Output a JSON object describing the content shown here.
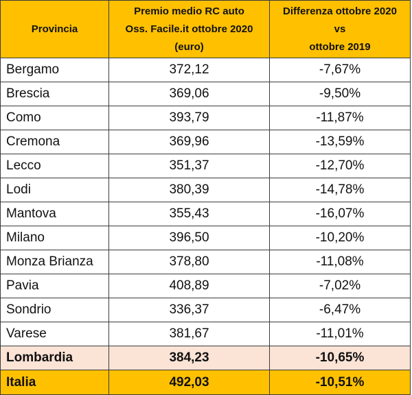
{
  "header": {
    "provincia": "Provincia",
    "premio_line1": "Premio medio RC auto",
    "premio_line2": "Oss. Facile.it ottobre 2020",
    "premio_line3": "(euro)",
    "diff_line1": "Differenza ottobre 2020",
    "diff_line2": "vs",
    "diff_line3": "ottobre 2019"
  },
  "rows": [
    {
      "provincia": "Bergamo",
      "premio": "372,12",
      "differenza": "-7,67%"
    },
    {
      "provincia": "Brescia",
      "premio": "369,06",
      "differenza": "-9,50%"
    },
    {
      "provincia": "Como",
      "premio": "393,79",
      "differenza": "-11,87%"
    },
    {
      "provincia": "Cremona",
      "premio": "369,96",
      "differenza": "-13,59%"
    },
    {
      "provincia": "Lecco",
      "premio": "351,37",
      "differenza": "-12,70%"
    },
    {
      "provincia": "Lodi",
      "premio": "380,39",
      "differenza": "-14,78%"
    },
    {
      "provincia": "Mantova",
      "premio": "355,43",
      "differenza": "-16,07%"
    },
    {
      "provincia": "Milano",
      "premio": "396,50",
      "differenza": "-10,20%"
    },
    {
      "provincia": "Monza Brianza",
      "premio": "378,80",
      "differenza": "-11,08%"
    },
    {
      "provincia": "Pavia",
      "premio": "408,89",
      "differenza": "-7,02%"
    },
    {
      "provincia": "Sondrio",
      "premio": "336,37",
      "differenza": "-6,47%"
    },
    {
      "provincia": "Varese",
      "premio": "381,67",
      "differenza": "-11,01%"
    }
  ],
  "lombardia": {
    "provincia": "Lombardia",
    "premio": "384,23",
    "differenza": "-10,65%"
  },
  "italia": {
    "provincia": "Italia",
    "premio": "492,03",
    "differenza": "-10,51%"
  },
  "colors": {
    "header_bg": "#ffc000",
    "region_bg": "#fbe3d6",
    "country_bg": "#ffc000"
  }
}
